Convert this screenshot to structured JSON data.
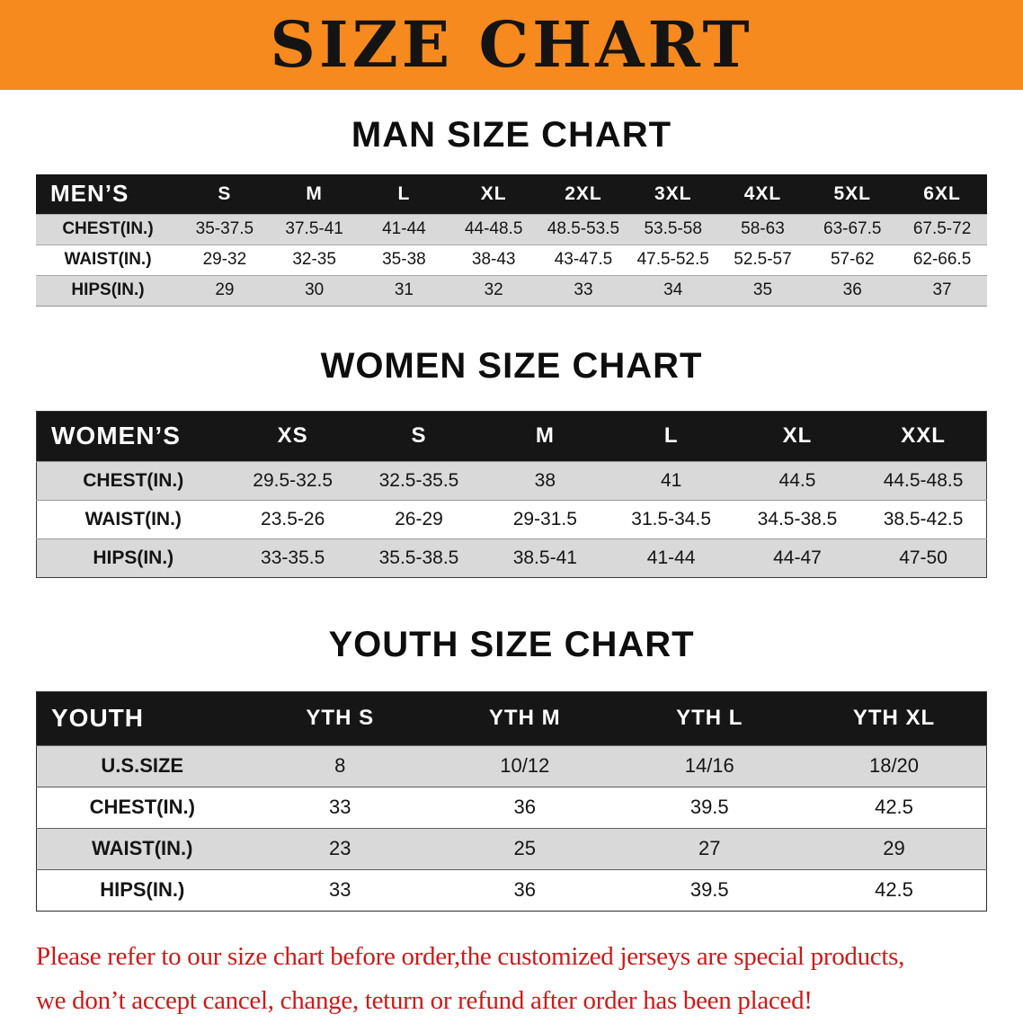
{
  "colors": {
    "accent": "#f68a1e",
    "table_header": "#161616",
    "row_shade": "#d9d9d9",
    "note_red": "#d01818"
  },
  "banner": {
    "title": "SIZE CHART"
  },
  "sections": {
    "men": {
      "heading": "MAN SIZE CHART",
      "table": {
        "header": [
          "MEN’S",
          "S",
          "M",
          "L",
          "XL",
          "2XL",
          "3XL",
          "4XL",
          "5XL",
          "6XL"
        ],
        "rows": [
          [
            "CHEST(IN.)",
            "35-37.5",
            "37.5-41",
            "41-44",
            "44-48.5",
            "48.5-53.5",
            "53.5-58",
            "58-63",
            "63-67.5",
            "67.5-72"
          ],
          [
            "WAIST(IN.)",
            "29-32",
            "32-35",
            "35-38",
            "38-43",
            "43-47.5",
            "47.5-52.5",
            "52.5-57",
            "57-62",
            "62-66.5"
          ],
          [
            "HIPS(IN.)",
            "29",
            "30",
            "31",
            "32",
            "33",
            "34",
            "35",
            "36",
            "37"
          ]
        ]
      }
    },
    "women": {
      "heading": "WOMEN SIZE CHART",
      "table": {
        "header": [
          "WOMEN’S",
          "XS",
          "S",
          "M",
          "L",
          "XL",
          "XXL"
        ],
        "rows": [
          [
            "CHEST(IN.)",
            "29.5-32.5",
            "32.5-35.5",
            "38",
            "41",
            "44.5",
            "44.5-48.5"
          ],
          [
            "WAIST(IN.)",
            "23.5-26",
            "26-29",
            "29-31.5",
            "31.5-34.5",
            "34.5-38.5",
            "38.5-42.5"
          ],
          [
            "HIPS(IN.)",
            "33-35.5",
            "35.5-38.5",
            "38.5-41",
            "41-44",
            "44-47",
            "47-50"
          ]
        ]
      }
    },
    "youth": {
      "heading": "YOUTH SIZE CHART",
      "table": {
        "header": [
          "YOUTH",
          "YTH S",
          "YTH M",
          "YTH L",
          "YTH XL"
        ],
        "rows": [
          [
            "U.S.SIZE",
            "8",
            "10/12",
            "14/16",
            "18/20"
          ],
          [
            "CHEST(IN.)",
            "33",
            "36",
            "39.5",
            "42.5"
          ],
          [
            "WAIST(IN.)",
            "23",
            "25",
            "27",
            "29"
          ],
          [
            "HIPS(IN.)",
            "33",
            "36",
            "39.5",
            "42.5"
          ]
        ]
      }
    }
  },
  "footer": {
    "line1": "Please refer to our size chart before order,the customized jerseys are special products,",
    "line2": "we don’t accept cancel, change, teturn or refund after order has been placed!"
  }
}
